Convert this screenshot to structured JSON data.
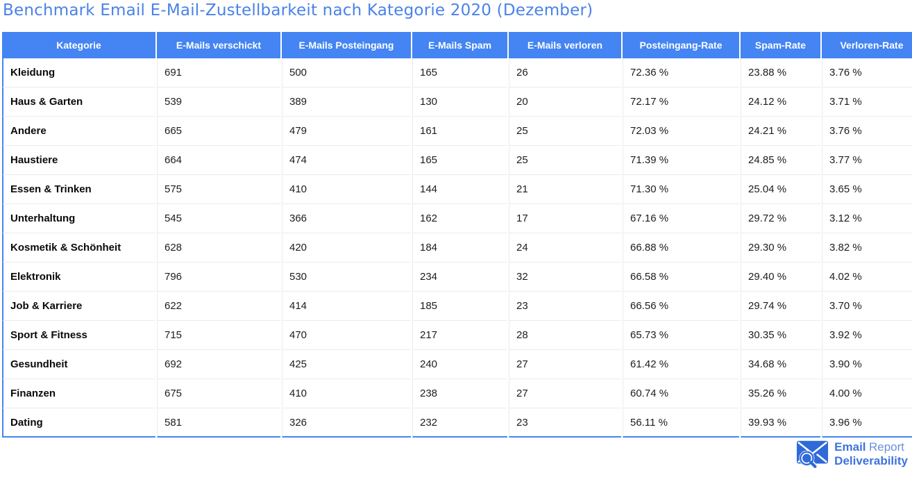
{
  "title": "Benchmark Email E-Mail-Zustellbarkeit nach Kategorie 2020 (Dezember)",
  "colors": {
    "header_background": "#4484f3",
    "table_border": "#4484f3",
    "row_separator": "#ebebeb",
    "title_text": "#4a82e8",
    "logo_blue": "#3e73de",
    "logo_light_blue": "#6b90dd",
    "header_text": "#ffffff",
    "body_text": "#1c1c1c"
  },
  "chart_data": {
    "type": "table",
    "title": "Benchmark Email E-Mail-Zustellbarkeit nach Kategorie 2020 (Dezember)",
    "columns": [
      "Kategorie",
      "E-Mails verschickt",
      "E-Mails Posteingang",
      "E-Mails Spam",
      "E-Mails verloren",
      "Posteingang-Rate",
      "Spam-Rate",
      "Verloren-Rate"
    ],
    "rows": [
      [
        "Kleidung",
        "691",
        "500",
        "165",
        "26",
        "72.36 %",
        "23.88 %",
        "3.76 %"
      ],
      [
        "Haus & Garten",
        "539",
        "389",
        "130",
        "20",
        "72.17 %",
        "24.12 %",
        "3.71 %"
      ],
      [
        "Andere",
        "665",
        "479",
        "161",
        "25",
        "72.03 %",
        "24.21 %",
        "3.76 %"
      ],
      [
        "Haustiere",
        "664",
        "474",
        "165",
        "25",
        "71.39 %",
        "24.85 %",
        "3.77 %"
      ],
      [
        "Essen & Trinken",
        "575",
        "410",
        "144",
        "21",
        "71.30 %",
        "25.04 %",
        "3.65 %"
      ],
      [
        "Unterhaltung",
        "545",
        "366",
        "162",
        "17",
        "67.16 %",
        "29.72 %",
        "3.12 %"
      ],
      [
        "Kosmetik & Schönheit",
        "628",
        "420",
        "184",
        "24",
        "66.88 %",
        "29.30 %",
        "3.82 %"
      ],
      [
        "Elektronik",
        "796",
        "530",
        "234",
        "32",
        "66.58 %",
        "29.40 %",
        "4.02 %"
      ],
      [
        "Job & Karriere",
        "622",
        "414",
        "185",
        "23",
        "66.56 %",
        "29.74 %",
        "3.70 %"
      ],
      [
        "Sport & Fitness",
        "715",
        "470",
        "217",
        "28",
        "65.73 %",
        "30.35 %",
        "3.92 %"
      ],
      [
        "Gesundheit",
        "692",
        "425",
        "240",
        "27",
        "61.42 %",
        "34.68 %",
        "3.90 %"
      ],
      [
        "Finanzen",
        "675",
        "410",
        "238",
        "27",
        "60.74 %",
        "35.26 %",
        "4.00 %"
      ],
      [
        "Dating",
        "581",
        "326",
        "232",
        "23",
        "56.11 %",
        "39.93 %",
        "3.96 %"
      ]
    ]
  },
  "logo": {
    "line1_bold": "Email",
    "line1_regular": "Report",
    "line2": "Deliverability"
  }
}
